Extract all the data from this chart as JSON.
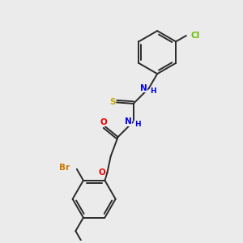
{
  "background_color": "#ebebeb",
  "bond_color": "#2a2a2a",
  "atom_colors": {
    "Cl": "#6abf00",
    "N": "#0000ee",
    "S": "#bbaa00",
    "O": "#ee0000",
    "Br": "#cc7700",
    "C": "#2a2a2a"
  },
  "lw": 1.4,
  "fs": 7.5
}
